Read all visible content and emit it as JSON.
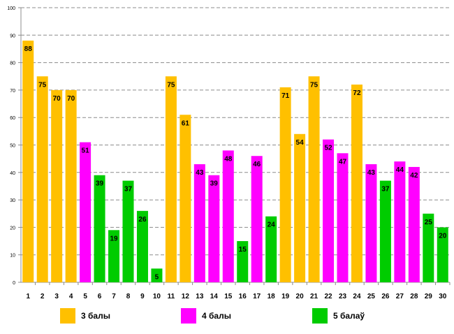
{
  "chart_data": {
    "type": "bar",
    "categories": [
      "1",
      "2",
      "3",
      "4",
      "5",
      "6",
      "7",
      "8",
      "9",
      "10",
      "11",
      "12",
      "13",
      "14",
      "15",
      "16",
      "17",
      "18",
      "19",
      "20",
      "21",
      "22",
      "23",
      "24",
      "25",
      "26",
      "27",
      "28",
      "29",
      "30"
    ],
    "values": [
      88,
      75,
      70,
      70,
      51,
      39,
      19,
      37,
      26,
      5,
      75,
      61,
      43,
      39,
      48,
      15,
      46,
      24,
      71,
      54,
      75,
      52,
      47,
      72,
      43,
      37,
      44,
      42,
      25,
      20
    ],
    "groups": [
      "3",
      "3",
      "3",
      "3",
      "4",
      "5",
      "5",
      "5",
      "5",
      "5",
      "3",
      "3",
      "4",
      "4",
      "4",
      "5",
      "4",
      "5",
      "3",
      "3",
      "3",
      "4",
      "4",
      "3",
      "4",
      "5",
      "4",
      "4",
      "5",
      "5"
    ],
    "group_colors": {
      "3": "#FFC000",
      "4": "#FF00FF",
      "5": "#00CC00"
    },
    "ylim": [
      0,
      100
    ],
    "yticks": [
      0,
      10,
      20,
      30,
      40,
      50,
      60,
      70,
      80,
      90,
      100
    ],
    "grid": true,
    "legend_placement": "bottom",
    "legend": [
      {
        "key": "3",
        "label": "3 балы",
        "color": "#FFC000"
      },
      {
        "key": "4",
        "label": "4 балы",
        "color": "#FF00FF"
      },
      {
        "key": "5",
        "label": "5 балаў",
        "color": "#00CC00"
      }
    ]
  }
}
